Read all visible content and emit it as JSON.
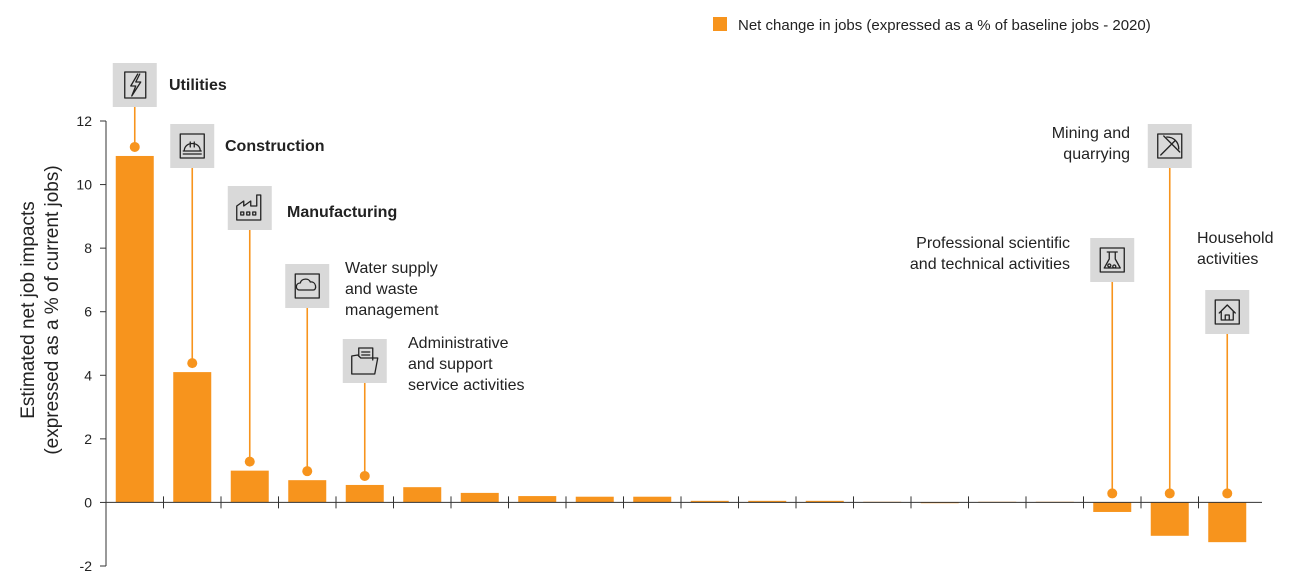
{
  "chart_data": {
    "type": "bar",
    "title": "",
    "xlabel": "",
    "ylabel_lines": [
      "Estimated net job impacts",
      "(expressed as a % of current jobs)"
    ],
    "ylim": [
      -2,
      12
    ],
    "yticks": [
      -2,
      0,
      2,
      4,
      6,
      8,
      10,
      12
    ],
    "legend": {
      "position": "top-right",
      "label": "Net change in jobs (expressed as a % of baseline jobs - 2020)",
      "color": "#F7941D"
    },
    "bar_color": "#F7941D",
    "values": [
      10.9,
      4.1,
      1.0,
      0.7,
      0.55,
      0.48,
      0.3,
      0.2,
      0.18,
      0.18,
      0.05,
      0.05,
      0.05,
      0.02,
      0.0,
      0.02,
      0.02,
      -0.3,
      -1.05,
      -1.25
    ],
    "annotations": [
      {
        "bar": 0,
        "lines": [
          "Utilities"
        ],
        "bold": true,
        "icon": "lightning-icon",
        "text_side": "right"
      },
      {
        "bar": 1,
        "lines": [
          "Construction"
        ],
        "bold": true,
        "icon": "hard-hat-icon",
        "text_side": "right"
      },
      {
        "bar": 2,
        "lines": [
          "Manufacturing"
        ],
        "bold": true,
        "icon": "factory-icon",
        "text_side": "right"
      },
      {
        "bar": 3,
        "lines": [
          "Water supply",
          "and waste",
          "management"
        ],
        "bold": false,
        "icon": "co2-cloud-icon",
        "text_side": "right"
      },
      {
        "bar": 4,
        "lines": [
          "Administrative",
          "and support",
          "service activities"
        ],
        "bold": false,
        "icon": "folder-document-icon",
        "text_side": "right"
      },
      {
        "bar": 17,
        "lines": [
          "Professional scientific",
          "and technical activities"
        ],
        "bold": false,
        "icon": "flask-icon",
        "text_side": "left"
      },
      {
        "bar": 18,
        "lines": [
          "Mining and",
          "quarrying"
        ],
        "bold": false,
        "icon": "pickaxe-icon",
        "text_side": "left"
      },
      {
        "bar": 19,
        "lines": [
          "Household",
          "activities"
        ],
        "bold": false,
        "icon": "house-icon",
        "text_side": "above"
      }
    ]
  }
}
